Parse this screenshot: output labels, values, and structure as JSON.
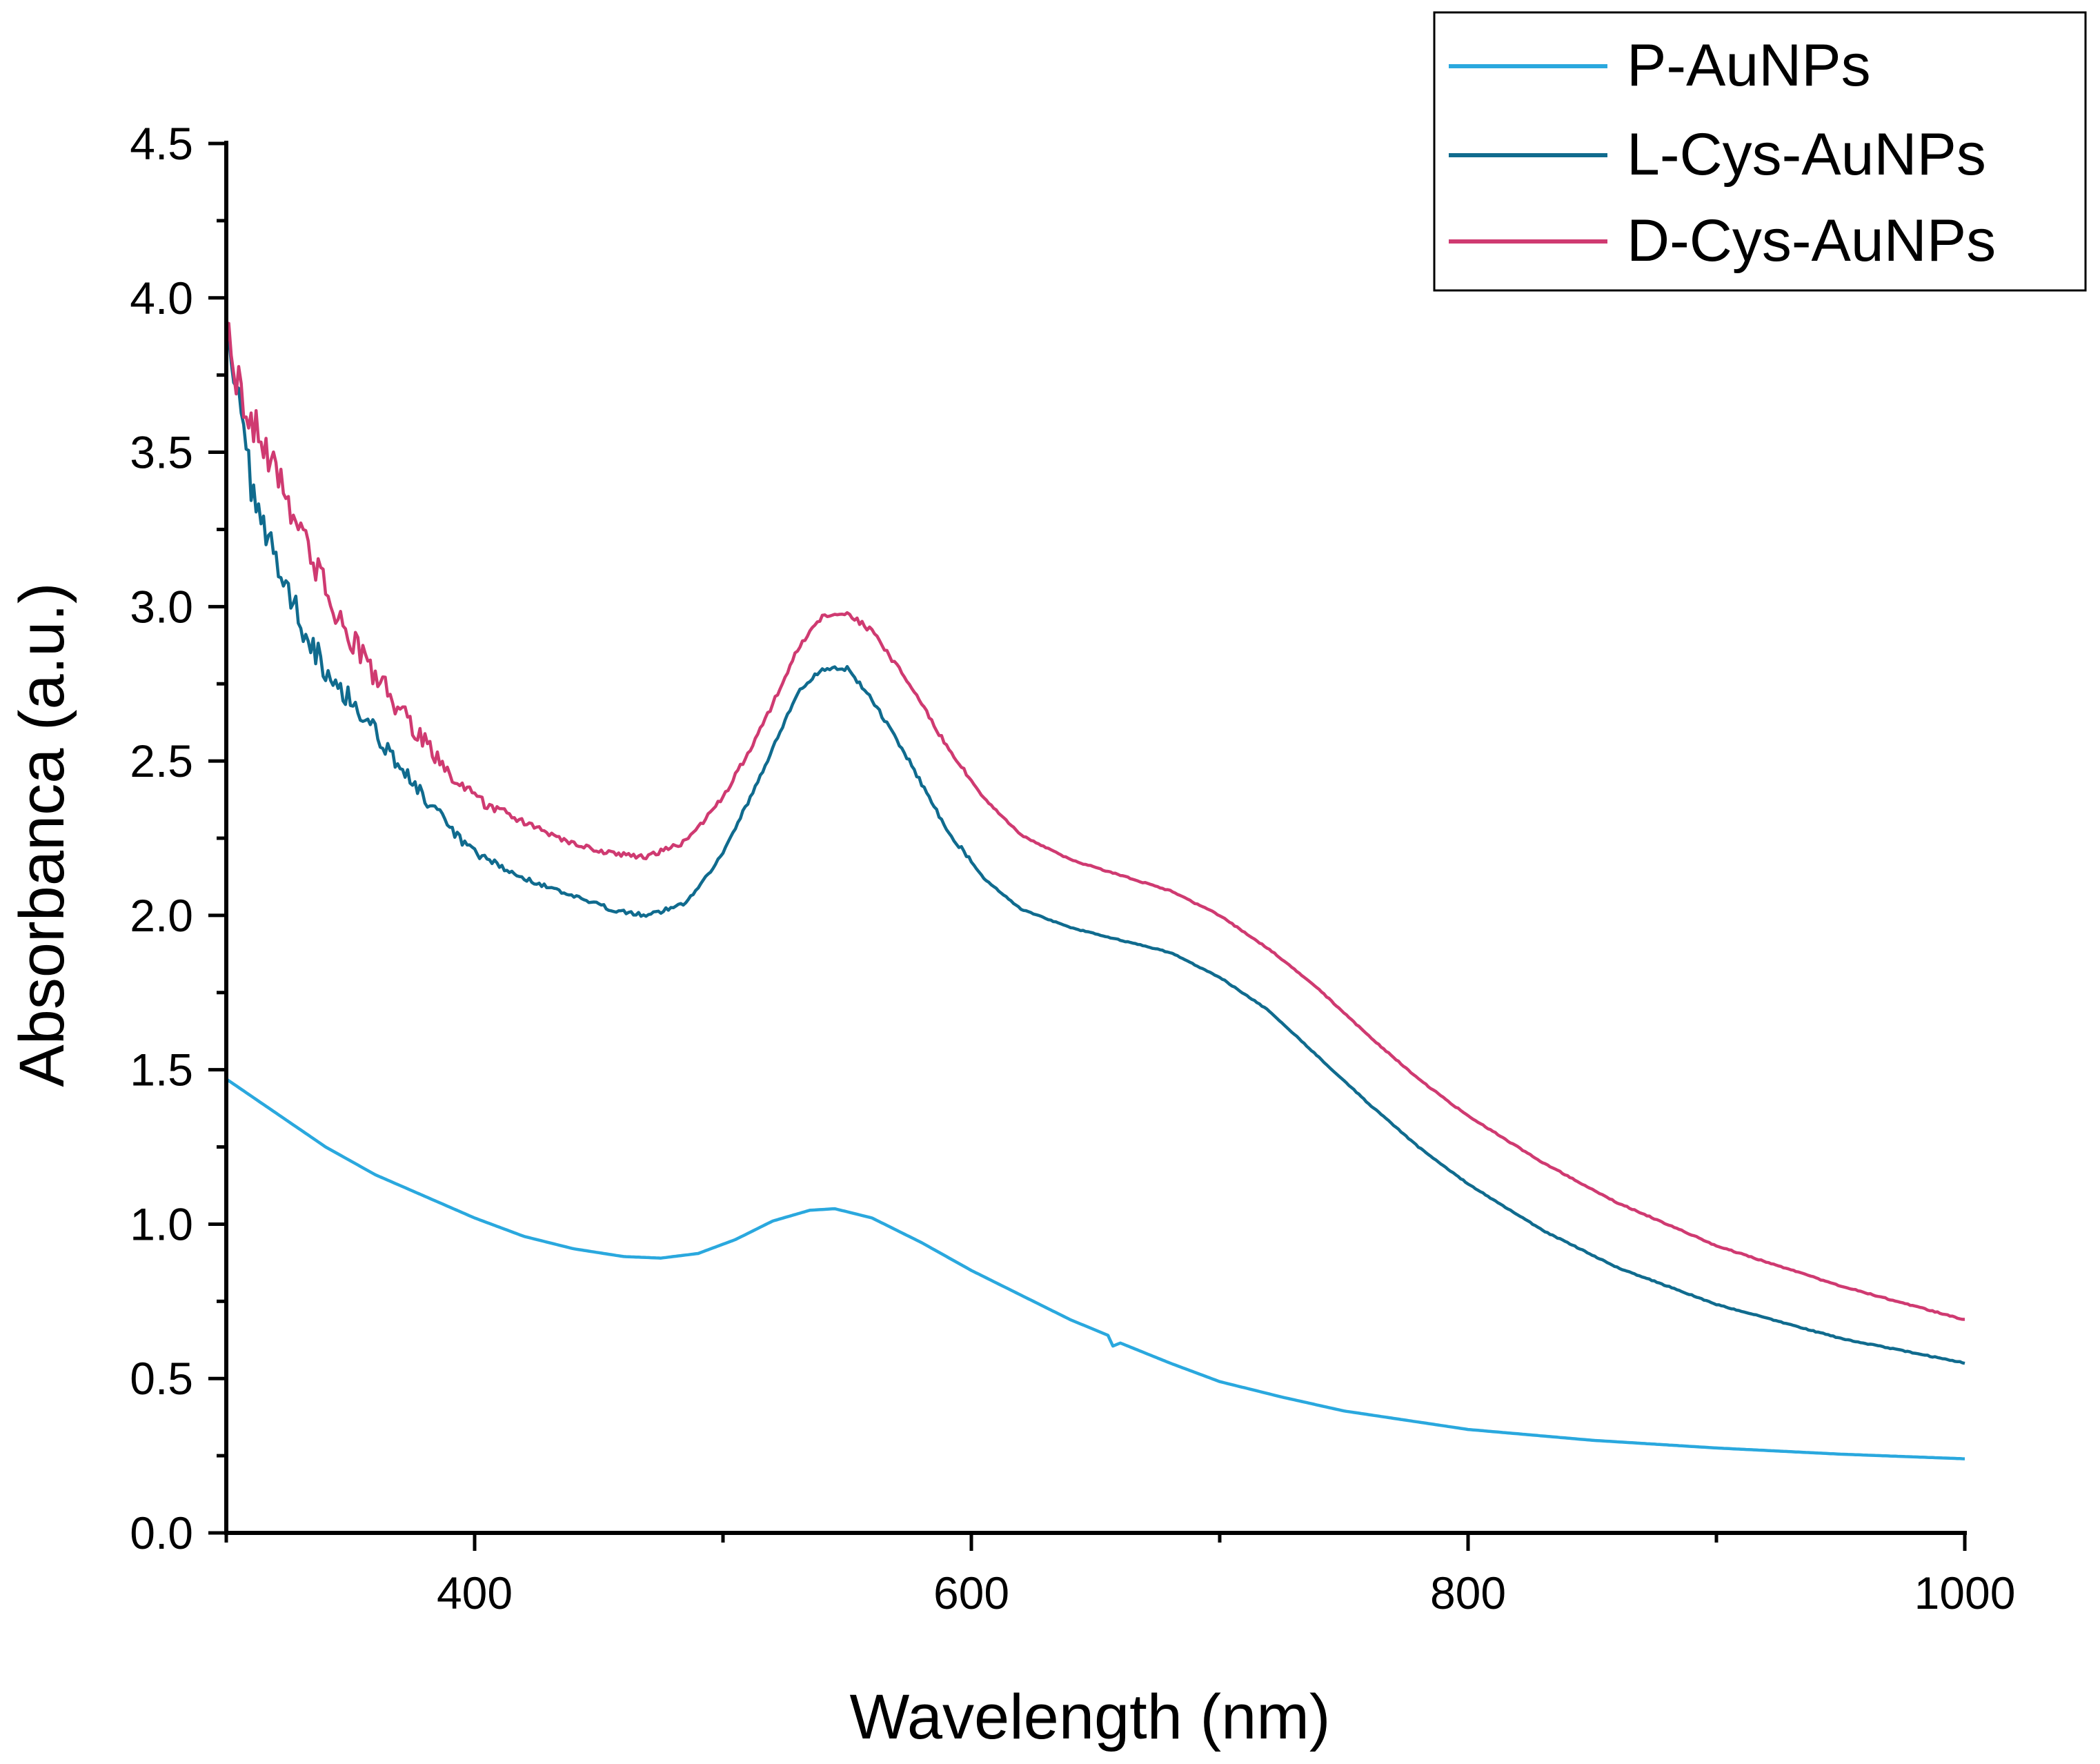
{
  "chart_data": {
    "type": "line",
    "title": "",
    "xlabel": "Wavelength (nm)",
    "ylabel": "Absorbanca (a.u.)",
    "xlim": [
      300,
      1000
    ],
    "ylim": [
      0,
      4.5
    ],
    "x_major_ticks": [
      400,
      600,
      800,
      1000
    ],
    "x_minor_ticks": [
      300,
      500,
      700,
      900
    ],
    "x_tick_labels": [
      "400",
      "600",
      "800",
      "1000"
    ],
    "y_major_ticks": [
      0,
      0.5,
      1,
      1.5,
      2,
      2.5,
      3,
      3.5,
      4,
      4.5
    ],
    "y_tick_labels": [
      "0.0",
      "0.5",
      "1.0",
      "1.5",
      "2.0",
      "2.5",
      "3.0",
      "3.5",
      "4.0",
      "4.5"
    ],
    "grid": false,
    "legend_position": "top-right",
    "series": [
      {
        "name": "P-AuNPs",
        "color": "#2aa8de",
        "noise": 0.0,
        "points": [
          [
            300,
            1.47
          ],
          [
            320,
            1.36
          ],
          [
            340,
            1.25
          ],
          [
            360,
            1.16
          ],
          [
            380,
            1.09
          ],
          [
            400,
            1.02
          ],
          [
            420,
            0.96
          ],
          [
            440,
            0.92
          ],
          [
            460,
            0.895
          ],
          [
            475,
            0.89
          ],
          [
            490,
            0.905
          ],
          [
            505,
            0.95
          ],
          [
            520,
            1.01
          ],
          [
            535,
            1.045
          ],
          [
            545,
            1.05
          ],
          [
            560,
            1.02
          ],
          [
            580,
            0.94
          ],
          [
            600,
            0.85
          ],
          [
            620,
            0.77
          ],
          [
            640,
            0.69
          ],
          [
            655,
            0.64
          ],
          [
            657,
            0.605
          ],
          [
            660,
            0.615
          ],
          [
            680,
            0.55
          ],
          [
            700,
            0.49
          ],
          [
            725,
            0.44
          ],
          [
            750,
            0.395
          ],
          [
            800,
            0.335
          ],
          [
            850,
            0.3
          ],
          [
            900,
            0.275
          ],
          [
            950,
            0.255
          ],
          [
            1000,
            0.24
          ]
        ]
      },
      {
        "name": "L-Cys-AuNPs",
        "color": "#106b8e",
        "noise": 0.05,
        "points": [
          [
            300,
            3.95
          ],
          [
            305,
            3.65
          ],
          [
            310,
            3.4
          ],
          [
            320,
            3.15
          ],
          [
            330,
            2.95
          ],
          [
            340,
            2.8
          ],
          [
            350,
            2.7
          ],
          [
            360,
            2.6
          ],
          [
            370,
            2.48
          ],
          [
            380,
            2.38
          ],
          [
            390,
            2.28
          ],
          [
            400,
            2.2
          ],
          [
            420,
            2.12
          ],
          [
            440,
            2.06
          ],
          [
            455,
            2.02
          ],
          [
            470,
            2.0
          ],
          [
            485,
            2.04
          ],
          [
            500,
            2.2
          ],
          [
            515,
            2.45
          ],
          [
            530,
            2.72
          ],
          [
            540,
            2.8
          ],
          [
            550,
            2.8
          ],
          [
            560,
            2.7
          ],
          [
            575,
            2.5
          ],
          [
            590,
            2.28
          ],
          [
            605,
            2.12
          ],
          [
            620,
            2.02
          ],
          [
            640,
            1.96
          ],
          [
            660,
            1.92
          ],
          [
            680,
            1.88
          ],
          [
            700,
            1.8
          ],
          [
            720,
            1.69
          ],
          [
            740,
            1.54
          ],
          [
            760,
            1.39
          ],
          [
            780,
            1.25
          ],
          [
            800,
            1.13
          ],
          [
            830,
            0.98
          ],
          [
            860,
            0.86
          ],
          [
            900,
            0.74
          ],
          [
            950,
            0.63
          ],
          [
            1000,
            0.55
          ]
        ]
      },
      {
        "name": "D-Cys-AuNPs",
        "color": "#cf3a71",
        "noise": 0.06,
        "points": [
          [
            300,
            3.9
          ],
          [
            305,
            3.72
          ],
          [
            310,
            3.6
          ],
          [
            320,
            3.45
          ],
          [
            330,
            3.25
          ],
          [
            340,
            3.05
          ],
          [
            350,
            2.9
          ],
          [
            360,
            2.78
          ],
          [
            370,
            2.66
          ],
          [
            380,
            2.56
          ],
          [
            390,
            2.46
          ],
          [
            400,
            2.38
          ],
          [
            420,
            2.3
          ],
          [
            440,
            2.23
          ],
          [
            455,
            2.2
          ],
          [
            470,
            2.19
          ],
          [
            485,
            2.24
          ],
          [
            500,
            2.38
          ],
          [
            515,
            2.6
          ],
          [
            530,
            2.86
          ],
          [
            540,
            2.97
          ],
          [
            550,
            2.98
          ],
          [
            560,
            2.92
          ],
          [
            575,
            2.75
          ],
          [
            590,
            2.55
          ],
          [
            605,
            2.38
          ],
          [
            620,
            2.26
          ],
          [
            640,
            2.18
          ],
          [
            660,
            2.13
          ],
          [
            680,
            2.08
          ],
          [
            700,
            2.0
          ],
          [
            720,
            1.89
          ],
          [
            740,
            1.76
          ],
          [
            760,
            1.61
          ],
          [
            780,
            1.47
          ],
          [
            800,
            1.35
          ],
          [
            830,
            1.2
          ],
          [
            860,
            1.07
          ],
          [
            900,
            0.93
          ],
          [
            950,
            0.8
          ],
          [
            1000,
            0.69
          ]
        ]
      }
    ]
  }
}
